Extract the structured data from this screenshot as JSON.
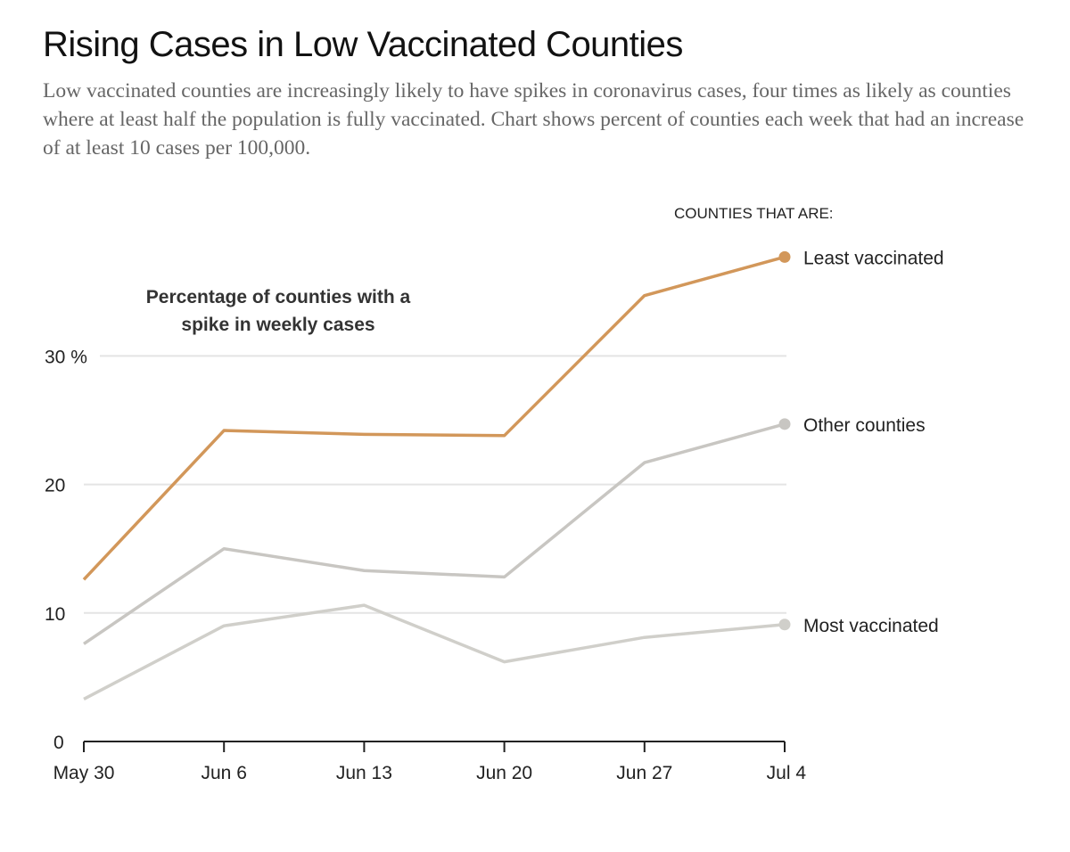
{
  "chart_data": {
    "type": "line",
    "title": "Rising Cases in Low Vaccinated Counties",
    "subtitle": "Low vaccinated counties are increasingly likely to have spikes in coronavirus cases, four times as likely as counties where at least half the population is fully vaccinated. Chart shows percent of counties each week that had an increase of at least 10 cases per 100,000.",
    "annotation": [
      "Percentage of counties with a",
      "spike in weekly cases"
    ],
    "legend_title": "COUNTIES THAT ARE:",
    "legend_placement": "right (direct labels at line ends)",
    "xlabel": "",
    "ylabel": "",
    "x": [
      "May 30",
      "Jun 6",
      "Jun 13",
      "Jun 20",
      "Jun 27",
      "Jul 4"
    ],
    "ylim": [
      0,
      30
    ],
    "yticks": [
      {
        "value": 0,
        "label": "0"
      },
      {
        "value": 10,
        "label": "10"
      },
      {
        "value": 20,
        "label": "20"
      },
      {
        "value": 30,
        "label": "30 %"
      }
    ],
    "grid": true,
    "series": [
      {
        "name": "Most vaccinated",
        "color": "#d0cfca",
        "values": [
          3.3,
          9.0,
          10.6,
          6.2,
          8.1,
          9.1
        ]
      },
      {
        "name": "Other counties",
        "color": "#c8c6c2",
        "values": [
          7.6,
          15.0,
          13.3,
          12.8,
          21.7,
          24.7
        ]
      },
      {
        "name": "Least vaccinated",
        "color": "#d2975a",
        "values": [
          12.6,
          24.2,
          23.9,
          23.8,
          34.7,
          37.7
        ]
      }
    ]
  }
}
